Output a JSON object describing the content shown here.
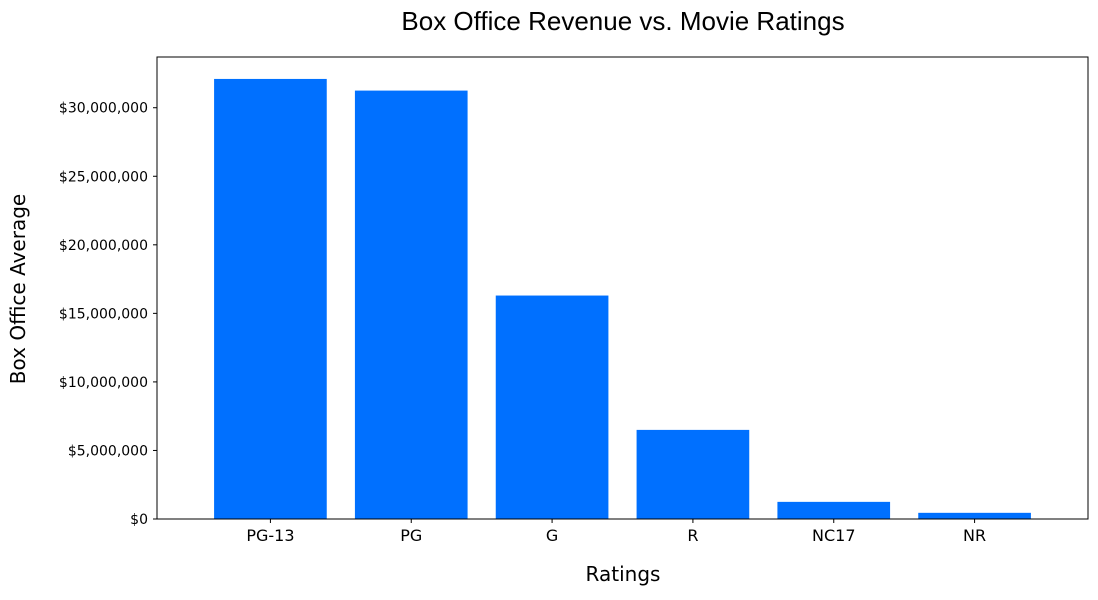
{
  "chart_data": {
    "type": "bar",
    "title": "Box Office Revenue vs. Movie Ratings",
    "xlabel": "Ratings",
    "ylabel": "Box Office Average",
    "categories": [
      "PG-13",
      "PG",
      "G",
      "R",
      "NC17",
      "NR"
    ],
    "values": [
      32100000,
      31250000,
      16300000,
      6500000,
      1250000,
      450000
    ],
    "ylim": [
      0,
      33700000
    ],
    "yticks": [
      0,
      5000000,
      10000000,
      15000000,
      20000000,
      25000000,
      30000000
    ],
    "ytick_labels": [
      "$0",
      "$5,000,000",
      "$10,000,000",
      "$15,000,000",
      "$20,000,000",
      "$25,000,000",
      "$30,000,000"
    ],
    "bar_color": "#0070FF",
    "grid": false,
    "legend": "none"
  }
}
